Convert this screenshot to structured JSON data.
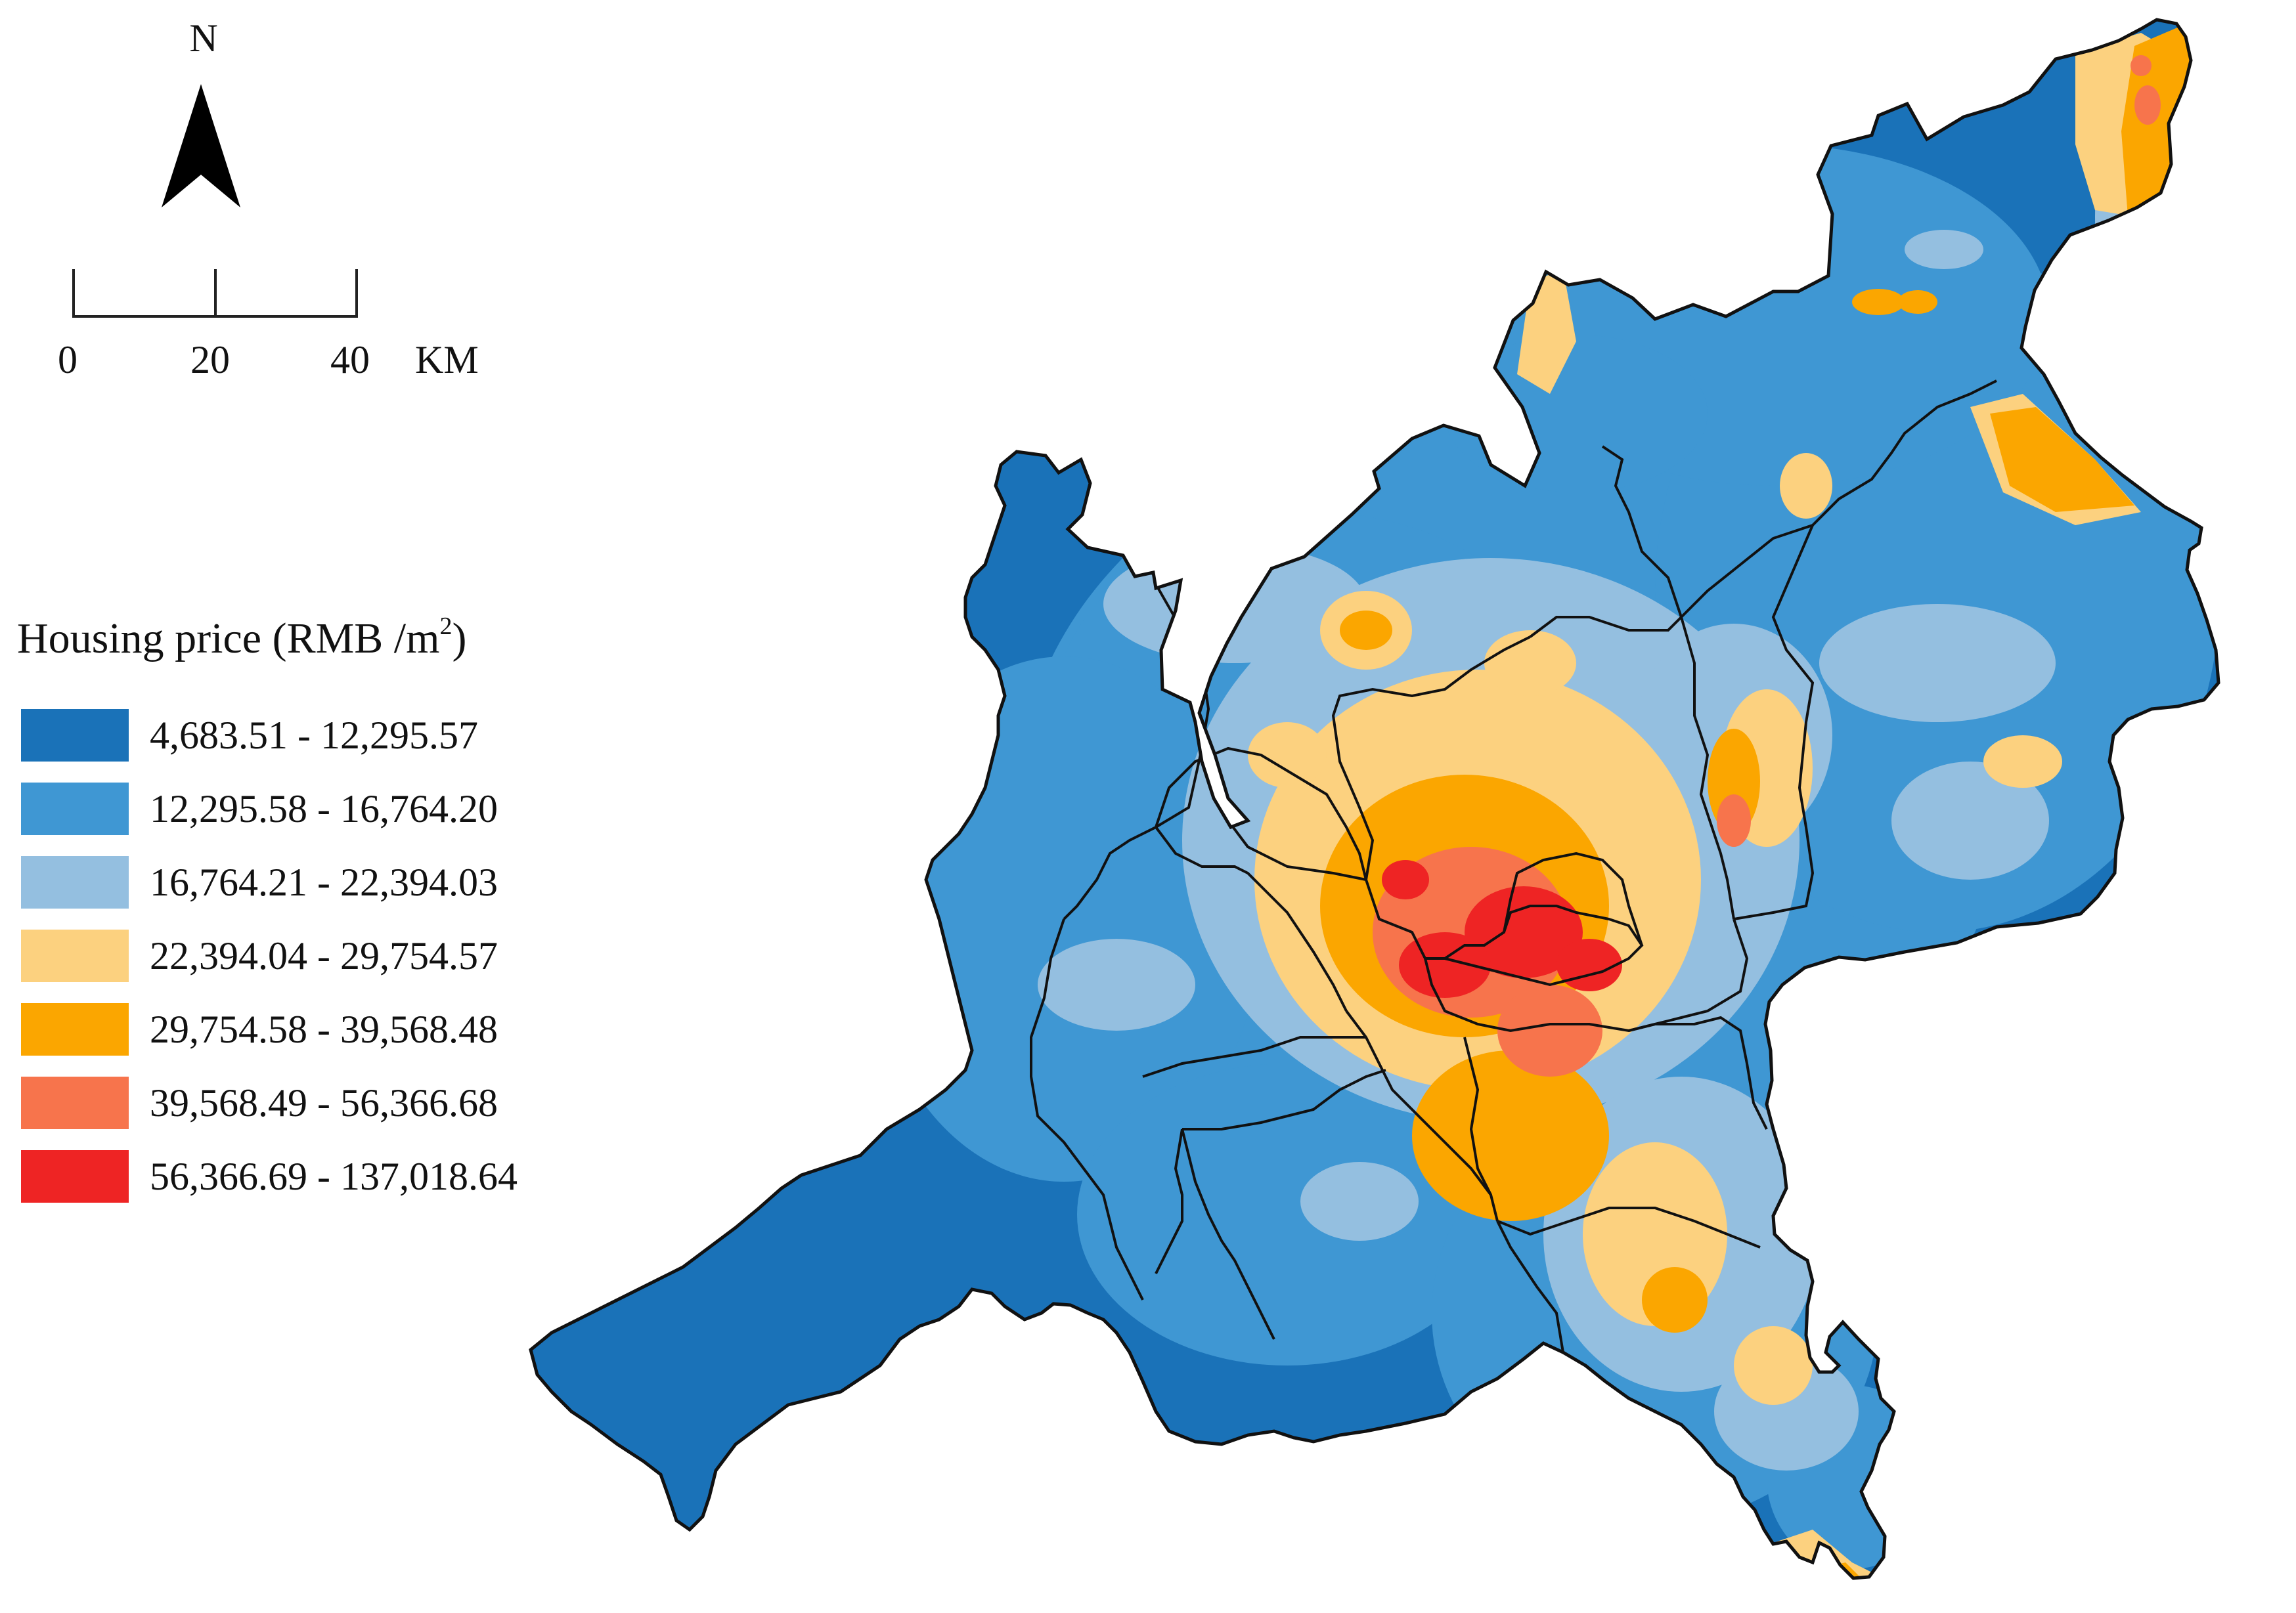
{
  "map": {
    "north_label": "N",
    "scale_bar": {
      "labels": [
        "0",
        "20",
        "40"
      ],
      "unit": "KM"
    },
    "legend": {
      "title_prefix": "Housing price (RMB /m",
      "title_superscript": "2",
      "title_suffix": ")",
      "classes": [
        {
          "label": "4,683.51 - 12,295.57",
          "color": "#1a72b8"
        },
        {
          "label": "12,295.58 - 16,764.20",
          "color": "#3f97d3"
        },
        {
          "label": "16,764.21 - 22,394.03",
          "color": "#94bfe0"
        },
        {
          "label": "22,394.04 - 29,754.57",
          "color": "#fcd17f"
        },
        {
          "label": "29,754.58 - 39,568.48",
          "color": "#fba600"
        },
        {
          "label": "39,568.49 - 56,366.68",
          "color": "#f7744c"
        },
        {
          "label": "56,366.69 - 137,018.64",
          "color": "#ee2424"
        }
      ]
    }
  }
}
